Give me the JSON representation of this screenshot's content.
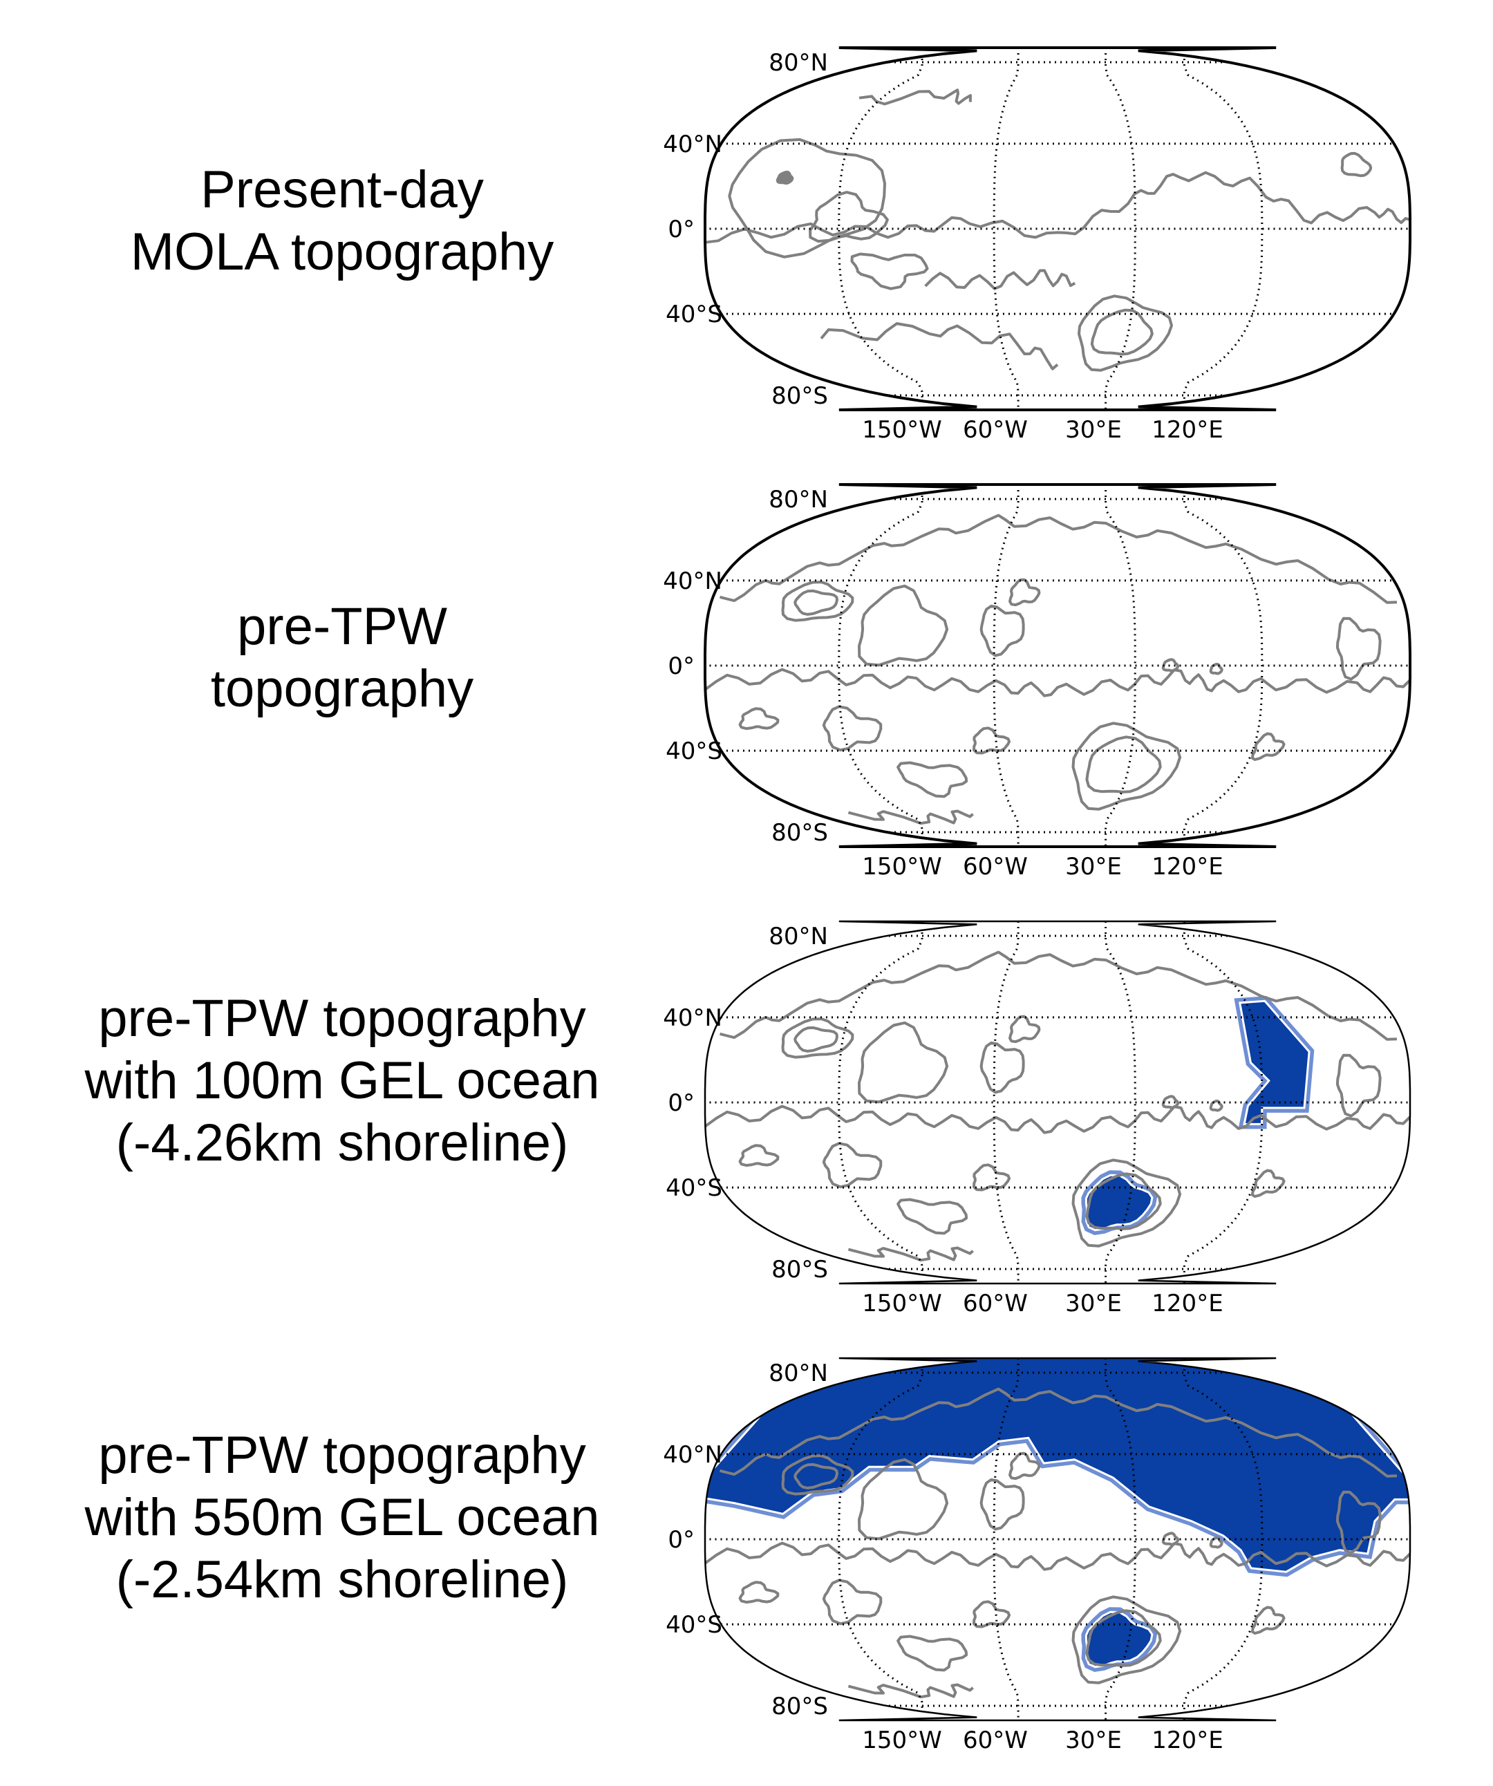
{
  "panels": [
    {
      "id": "present",
      "caption": [
        "Present-day",
        "MOLA topography"
      ],
      "ocean": "none",
      "contours": "mola"
    },
    {
      "id": "pretpw",
      "caption": [
        "pre-TPW",
        "topography"
      ],
      "ocean": "none",
      "contours": "pretpw"
    },
    {
      "id": "gel100",
      "caption": [
        "pre-TPW topography",
        "with 100m GEL ocean",
        "(-4.26km shoreline)"
      ],
      "ocean": "small",
      "contours": "pretpw"
    },
    {
      "id": "gel550",
      "caption": [
        "pre-TPW topography",
        "with 550m GEL ocean",
        "(-2.54km shoreline)"
      ],
      "ocean": "large",
      "contours": "pretpw"
    }
  ],
  "lat_labels": [
    "80°N",
    "40°N",
    "0°",
    "40°S",
    "80°S"
  ],
  "lon_labels": [
    "150°W",
    "60°W",
    "30°E",
    "120°E"
  ],
  "colors": {
    "ocean": "#0a3fa3",
    "shore": "#6f8fd4",
    "contour": "#808080",
    "grid": "#000000"
  }
}
